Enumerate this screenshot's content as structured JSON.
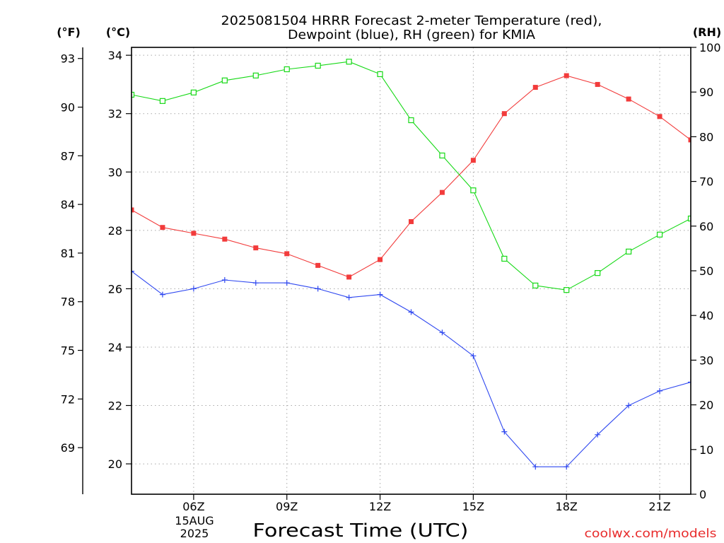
{
  "chart_data": {
    "type": "line",
    "title": [
      "2025081504 HRRR Forecast 2-meter Temperature (red),",
      "Dewpoint (blue), RH (green) for KMIA"
    ],
    "xlabel": "Forecast Time (UTC)",
    "x": [
      4,
      5,
      6,
      7,
      8,
      9,
      10,
      11,
      12,
      13,
      14,
      15,
      16,
      17,
      18,
      19,
      20,
      21,
      22
    ],
    "xlim": [
      4,
      22
    ],
    "xticks": [
      6,
      9,
      12,
      15,
      18,
      21
    ],
    "xtick_labels": [
      "06Z",
      "09Z",
      "12Z",
      "15Z",
      "18Z",
      "21Z"
    ],
    "date_label": [
      "15AUG",
      "2025"
    ],
    "grid": true,
    "axes": {
      "fahrenheit": {
        "label": "(°F)",
        "ticks": [
          93,
          90,
          87,
          84,
          81,
          78,
          75,
          72,
          69
        ]
      },
      "celsius": {
        "label": "(°C)",
        "ticks": [
          34,
          32,
          30,
          28,
          26,
          24,
          22,
          20
        ],
        "ylim": [
          18.96,
          34.27
        ]
      },
      "rh": {
        "label": "(RH)",
        "ticks": [
          100,
          90,
          80,
          70,
          60,
          50,
          40,
          30,
          20,
          10,
          0
        ],
        "ylim": [
          0,
          100
        ]
      }
    },
    "series": [
      {
        "name": "Temperature",
        "axis": "left",
        "color": "#f23b3b",
        "marker": "filled-square",
        "values": [
          28.7,
          28.1,
          27.9,
          27.7,
          27.4,
          27.2,
          26.8,
          26.4,
          27.0,
          28.3,
          29.3,
          30.4,
          32.0,
          32.9,
          33.3,
          33.0,
          32.5,
          31.9,
          31.1
        ]
      },
      {
        "name": "Dewpoint",
        "axis": "left",
        "color": "#2f48f0",
        "marker": "plus",
        "values": [
          26.6,
          25.8,
          26.0,
          26.3,
          26.2,
          26.2,
          26.0,
          25.7,
          25.8,
          25.2,
          24.5,
          23.7,
          21.1,
          19.9,
          19.9,
          21.0,
          22.0,
          22.5,
          22.8
        ]
      },
      {
        "name": "RH",
        "axis": "right",
        "color": "#16d916",
        "marker": "open-square",
        "values": [
          89.4,
          88.0,
          89.9,
          92.6,
          93.7,
          95.1,
          95.9,
          96.8,
          94.0,
          83.7,
          75.8,
          68.0,
          52.7,
          46.7,
          45.7,
          49.5,
          54.3,
          58.1,
          61.7
        ]
      }
    ]
  },
  "credit": {
    "text": "coolwx.com/models",
    "color": "#e82c2c"
  }
}
